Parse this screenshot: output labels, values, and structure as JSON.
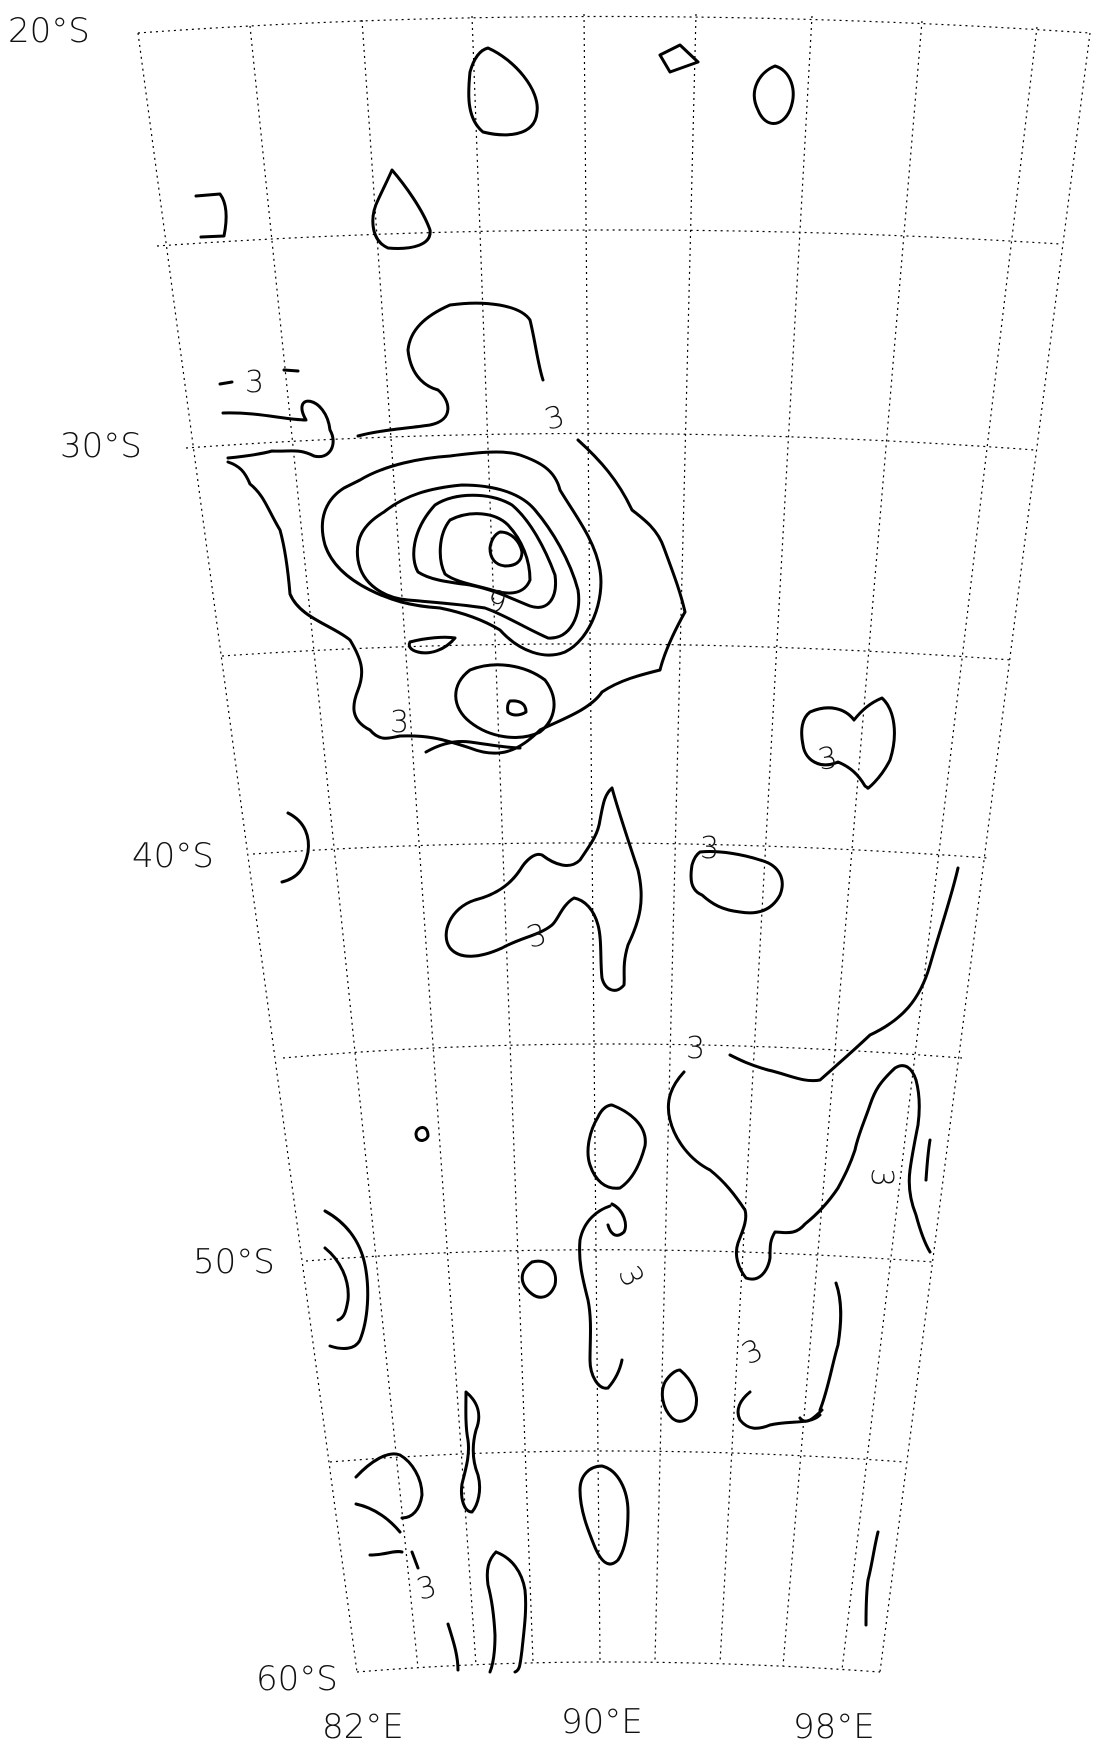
{
  "map": {
    "latitude_labels": [
      "20°S",
      "30°S",
      "40°S",
      "50°S",
      "60°S"
    ],
    "longitude_labels": [
      "82°E",
      "90°E",
      "98°E"
    ],
    "contour_labels": [
      "3",
      "3",
      "3",
      "3",
      "3",
      "3",
      "3",
      "3",
      "3",
      "9"
    ]
  },
  "colors": {
    "contour": "#000000",
    "grid": "#000000",
    "text": "#111111",
    "background": "#ffffff"
  }
}
